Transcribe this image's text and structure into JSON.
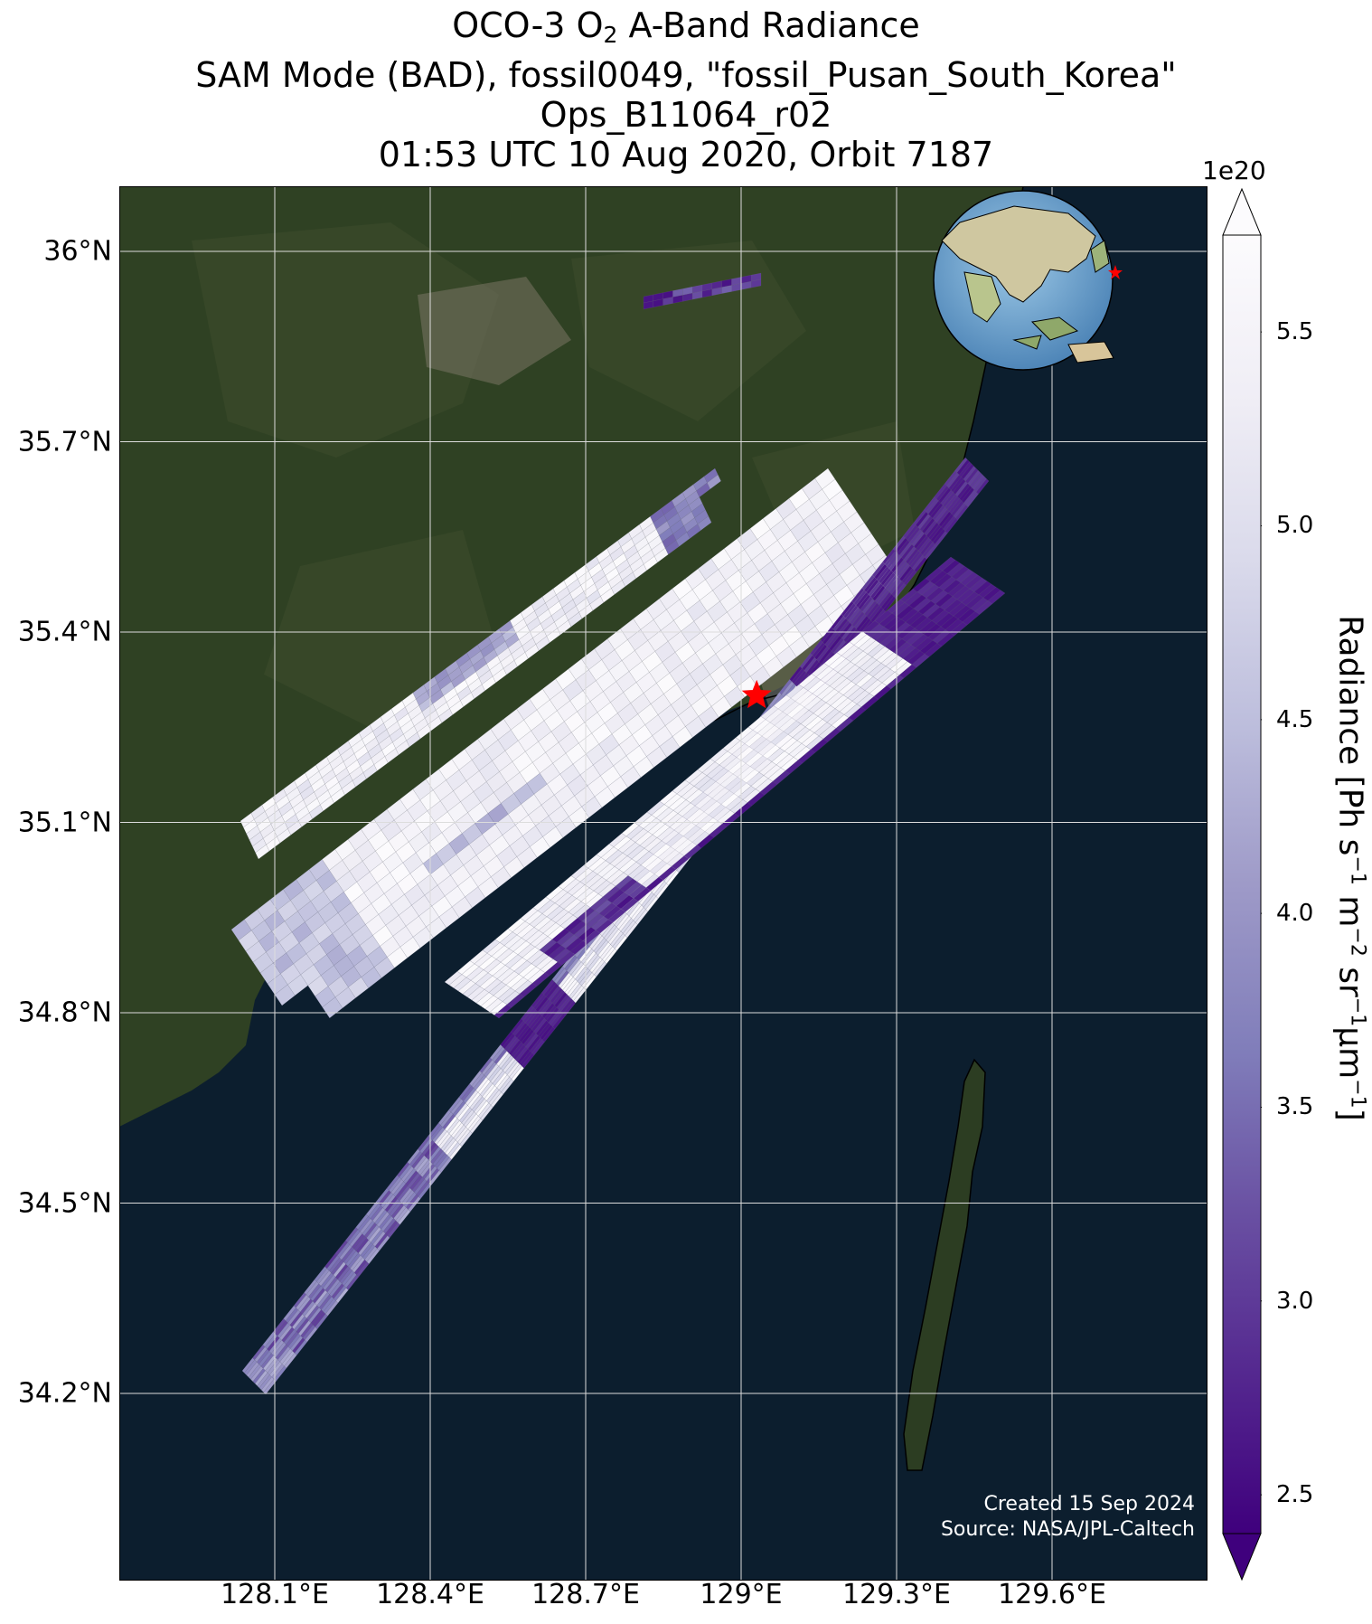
{
  "title": {
    "line1_pre": "OCO-3 O",
    "line1_sub": "2",
    "line1_post": " A-Band Radiance",
    "line2": "SAM Mode (BAD), fossil0049, \"fossil_Pusan_South_Korea\"",
    "line3": "Ops_B11064_r02",
    "line4": "01:53 UTC 10 Aug 2020, Orbit 7187"
  },
  "axes": {
    "lat_labels": [
      "36°N",
      "35.7°N",
      "35.4°N",
      "35.1°N",
      "34.8°N",
      "34.5°N",
      "34.2°N"
    ],
    "lat_values": [
      36.0,
      35.7,
      35.4,
      35.1,
      34.8,
      34.5,
      34.2
    ],
    "lon_labels": [
      "128.1°E",
      "128.4°E",
      "128.7°E",
      "129°E",
      "129.3°E",
      "129.6°E"
    ],
    "lon_values": [
      128.1,
      128.4,
      128.7,
      129.0,
      129.3,
      129.6
    ],
    "lon_range": [
      127.8,
      129.9
    ],
    "lat_range": [
      33.9,
      36.1
    ]
  },
  "colorbar": {
    "exponent": "1e20",
    "label_pre": "Radiance [Ph s",
    "label_s_exp": "−1",
    "label_mid1": " m",
    "label_m_exp": "−2",
    "label_mid2": " sr",
    "label_sr_exp": "−1",
    "label_mid3": "μm",
    "label_um_exp": "−1",
    "label_post": "]",
    "ticks": [
      "2.5",
      "3.0",
      "3.5",
      "4.0",
      "4.5",
      "5.0",
      "5.5"
    ],
    "tick_values": [
      2.5,
      3.0,
      3.5,
      4.0,
      4.5,
      5.0,
      5.5
    ],
    "range": [
      2.4,
      5.75
    ],
    "extend": "both",
    "colormap": "Purples_r",
    "colors": [
      "#3f007d",
      "#54278f",
      "#6a51a3",
      "#807dba",
      "#9e9ac8",
      "#bcbddc",
      "#dadaeb",
      "#efedf5",
      "#fcfbfd"
    ]
  },
  "target": {
    "name": "fossil_Pusan_South_Korea",
    "lon": 129.03,
    "lat": 35.3,
    "marker_color": "#ff0000"
  },
  "credits": {
    "created": "Created 15 Sep 2024",
    "source": "Source: NASA/JPL-Caltech"
  },
  "colors": {
    "ocean": "#0c1e2e",
    "land": "#2e3f22",
    "grid": "#dcdcdc",
    "coast": "#000000"
  }
}
